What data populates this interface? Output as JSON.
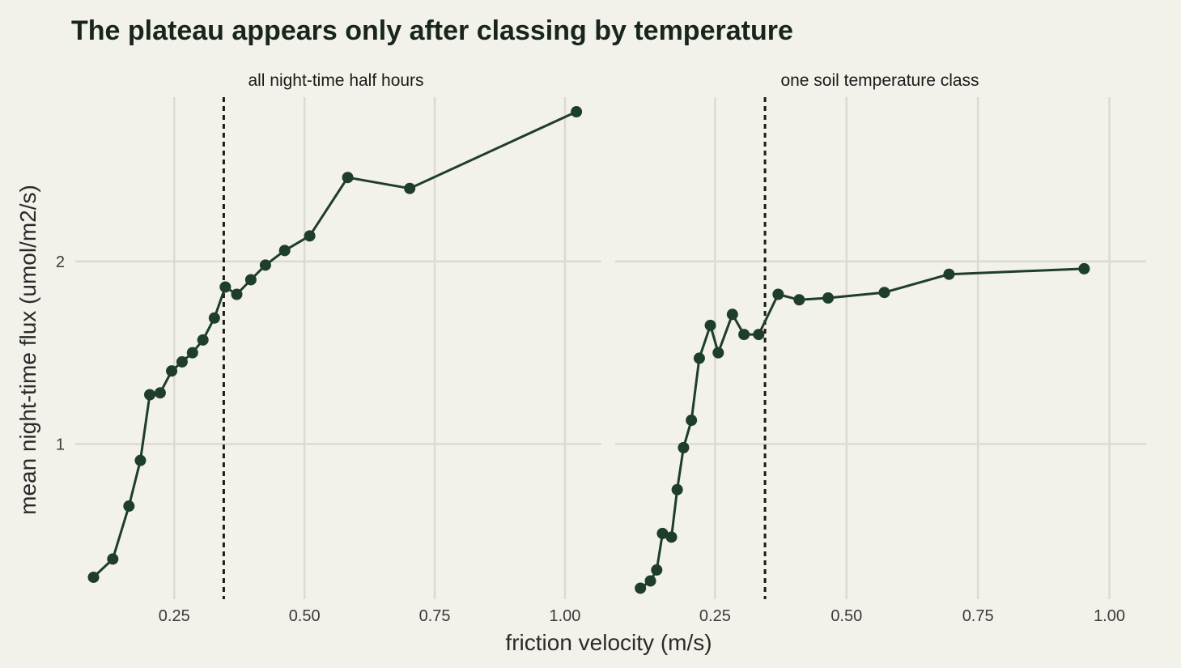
{
  "chart_data": {
    "type": "line",
    "title": "The plateau appears only after classing by temperature",
    "xlabel": "friction velocity (m/s)",
    "ylabel": "mean night-time flux (umol/m2/s)",
    "xlim": [
      0.06,
      1.07
    ],
    "ylim": [
      0.15,
      2.9
    ],
    "x_ticks": [
      "0.25",
      "0.50",
      "0.75",
      "1.00"
    ],
    "x_tick_values": [
      0.25,
      0.5,
      0.75,
      1.0
    ],
    "y_ticks": [
      "1",
      "2"
    ],
    "y_tick_values": [
      1,
      2
    ],
    "grid": true,
    "threshold": 0.345,
    "line_color": "#1f3d2b",
    "threshold_color": "#1a1a1a",
    "panels": [
      {
        "strip": "all night-time half hours",
        "x": [
          0.095,
          0.132,
          0.163,
          0.185,
          0.203,
          0.223,
          0.245,
          0.265,
          0.285,
          0.305,
          0.327,
          0.348,
          0.37,
          0.397,
          0.425,
          0.462,
          0.51,
          0.583,
          0.702,
          1.022
        ],
        "y": [
          0.27,
          0.37,
          0.66,
          0.91,
          1.27,
          1.28,
          1.4,
          1.45,
          1.5,
          1.57,
          1.69,
          1.86,
          1.82,
          1.9,
          1.98,
          2.06,
          2.14,
          2.46,
          2.4,
          2.82
        ]
      },
      {
        "strip": "one soil temperature class",
        "x": [
          0.108,
          0.127,
          0.139,
          0.15,
          0.167,
          0.178,
          0.19,
          0.205,
          0.22,
          0.241,
          0.256,
          0.283,
          0.305,
          0.333,
          0.37,
          0.41,
          0.465,
          0.572,
          0.695,
          0.952
        ],
        "y": [
          0.21,
          0.25,
          0.31,
          0.51,
          0.49,
          0.75,
          0.98,
          1.13,
          1.47,
          1.65,
          1.5,
          1.71,
          1.6,
          1.6,
          1.82,
          1.79,
          1.8,
          1.83,
          1.93,
          1.96
        ]
      }
    ]
  }
}
